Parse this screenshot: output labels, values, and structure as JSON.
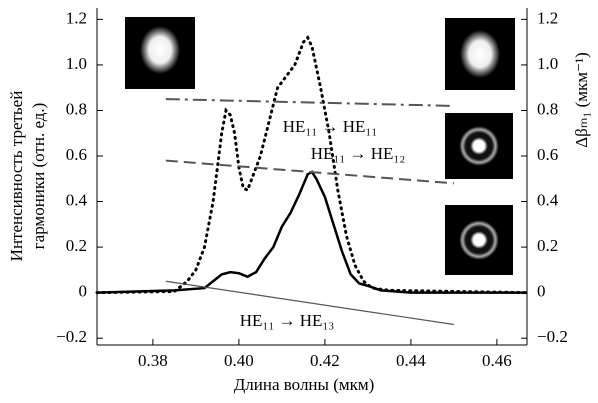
{
  "chart_data": {
    "type": "line",
    "xlabel": "Длина волны (мкм)",
    "ylabel": [
      "Интенсивность третьей",
      "гармоники (отн. ед.)"
    ],
    "y2label": "Δβₘ₁ (мкм⁻¹)",
    "xlim": [
      0.367,
      0.467
    ],
    "xticks": [
      0.38,
      {
        "value": 0.4,
        "label": "0.40"
      },
      0.42,
      0.44,
      0.46
    ],
    "ylim": [
      -0.23,
      1.25
    ],
    "yticks": [
      {
        "value": -0.2,
        "label": "−0.2"
      },
      0,
      0.2,
      0.4,
      0.6,
      0.8,
      {
        "value": 1,
        "label": "1.0"
      },
      1.2
    ],
    "y2lim": [
      -0.23,
      1.25
    ],
    "y2ticks": [
      {
        "value": -0.2,
        "label": "−0.2"
      },
      0,
      0.2,
      0.4,
      0.6,
      0.8,
      {
        "value": 1,
        "label": "1.0"
      },
      1.2
    ],
    "series": [
      {
        "color": "#000000",
        "style": "dotted",
        "x": [
          0.367,
          0.385,
          0.388,
          0.39,
          0.392,
          0.394,
          0.396,
          0.397,
          0.398,
          0.399,
          0.4,
          0.401,
          0.402,
          0.403,
          0.405,
          0.407,
          0.409,
          0.411,
          0.413,
          0.415,
          0.416,
          0.417,
          0.419,
          0.421,
          0.423,
          0.425,
          0.427,
          0.429,
          0.431,
          0.435,
          0.467
        ],
        "values": [
          0.0,
          0.005,
          0.05,
          0.1,
          0.2,
          0.4,
          0.7,
          0.8,
          0.78,
          0.7,
          0.55,
          0.46,
          0.45,
          0.5,
          0.6,
          0.75,
          0.9,
          0.95,
          1.0,
          1.1,
          1.12,
          1.08,
          0.9,
          0.7,
          0.45,
          0.25,
          0.12,
          0.05,
          0.02,
          0.01,
          0.0
        ]
      },
      {
        "color": "#000000",
        "style": "solid",
        "x": [
          0.367,
          0.385,
          0.392,
          0.394,
          0.396,
          0.398,
          0.4,
          0.402,
          0.404,
          0.406,
          0.408,
          0.41,
          0.412,
          0.414,
          0.416,
          0.417,
          0.418,
          0.42,
          0.422,
          0.424,
          0.426,
          0.428,
          0.43,
          0.433,
          0.44,
          0.467
        ],
        "values": [
          0.0,
          0.01,
          0.02,
          0.05,
          0.08,
          0.09,
          0.085,
          0.07,
          0.09,
          0.15,
          0.2,
          0.29,
          0.35,
          0.43,
          0.52,
          0.53,
          0.5,
          0.42,
          0.3,
          0.18,
          0.08,
          0.04,
          0.03,
          0.01,
          0.0,
          0.0
        ]
      },
      {
        "color": "#555555",
        "style": "dashdot",
        "axis": "y2",
        "x": [
          0.383,
          0.45
        ],
        "values": [
          0.85,
          0.82
        ]
      },
      {
        "color": "#555555",
        "style": "dashed",
        "axis": "y2",
        "x": [
          0.383,
          0.45
        ],
        "values": [
          0.58,
          0.48
        ]
      },
      {
        "color": "#555555",
        "style": "thin",
        "axis": "y2",
        "x": [
          0.383,
          0.45
        ],
        "values": [
          0.05,
          -0.14
        ]
      }
    ],
    "annotations": [
      "HE₁₁ → HE₁₁",
      "HE₁₁ → HE₁₂",
      "HE₁₁ → HE₁₃"
    ]
  }
}
